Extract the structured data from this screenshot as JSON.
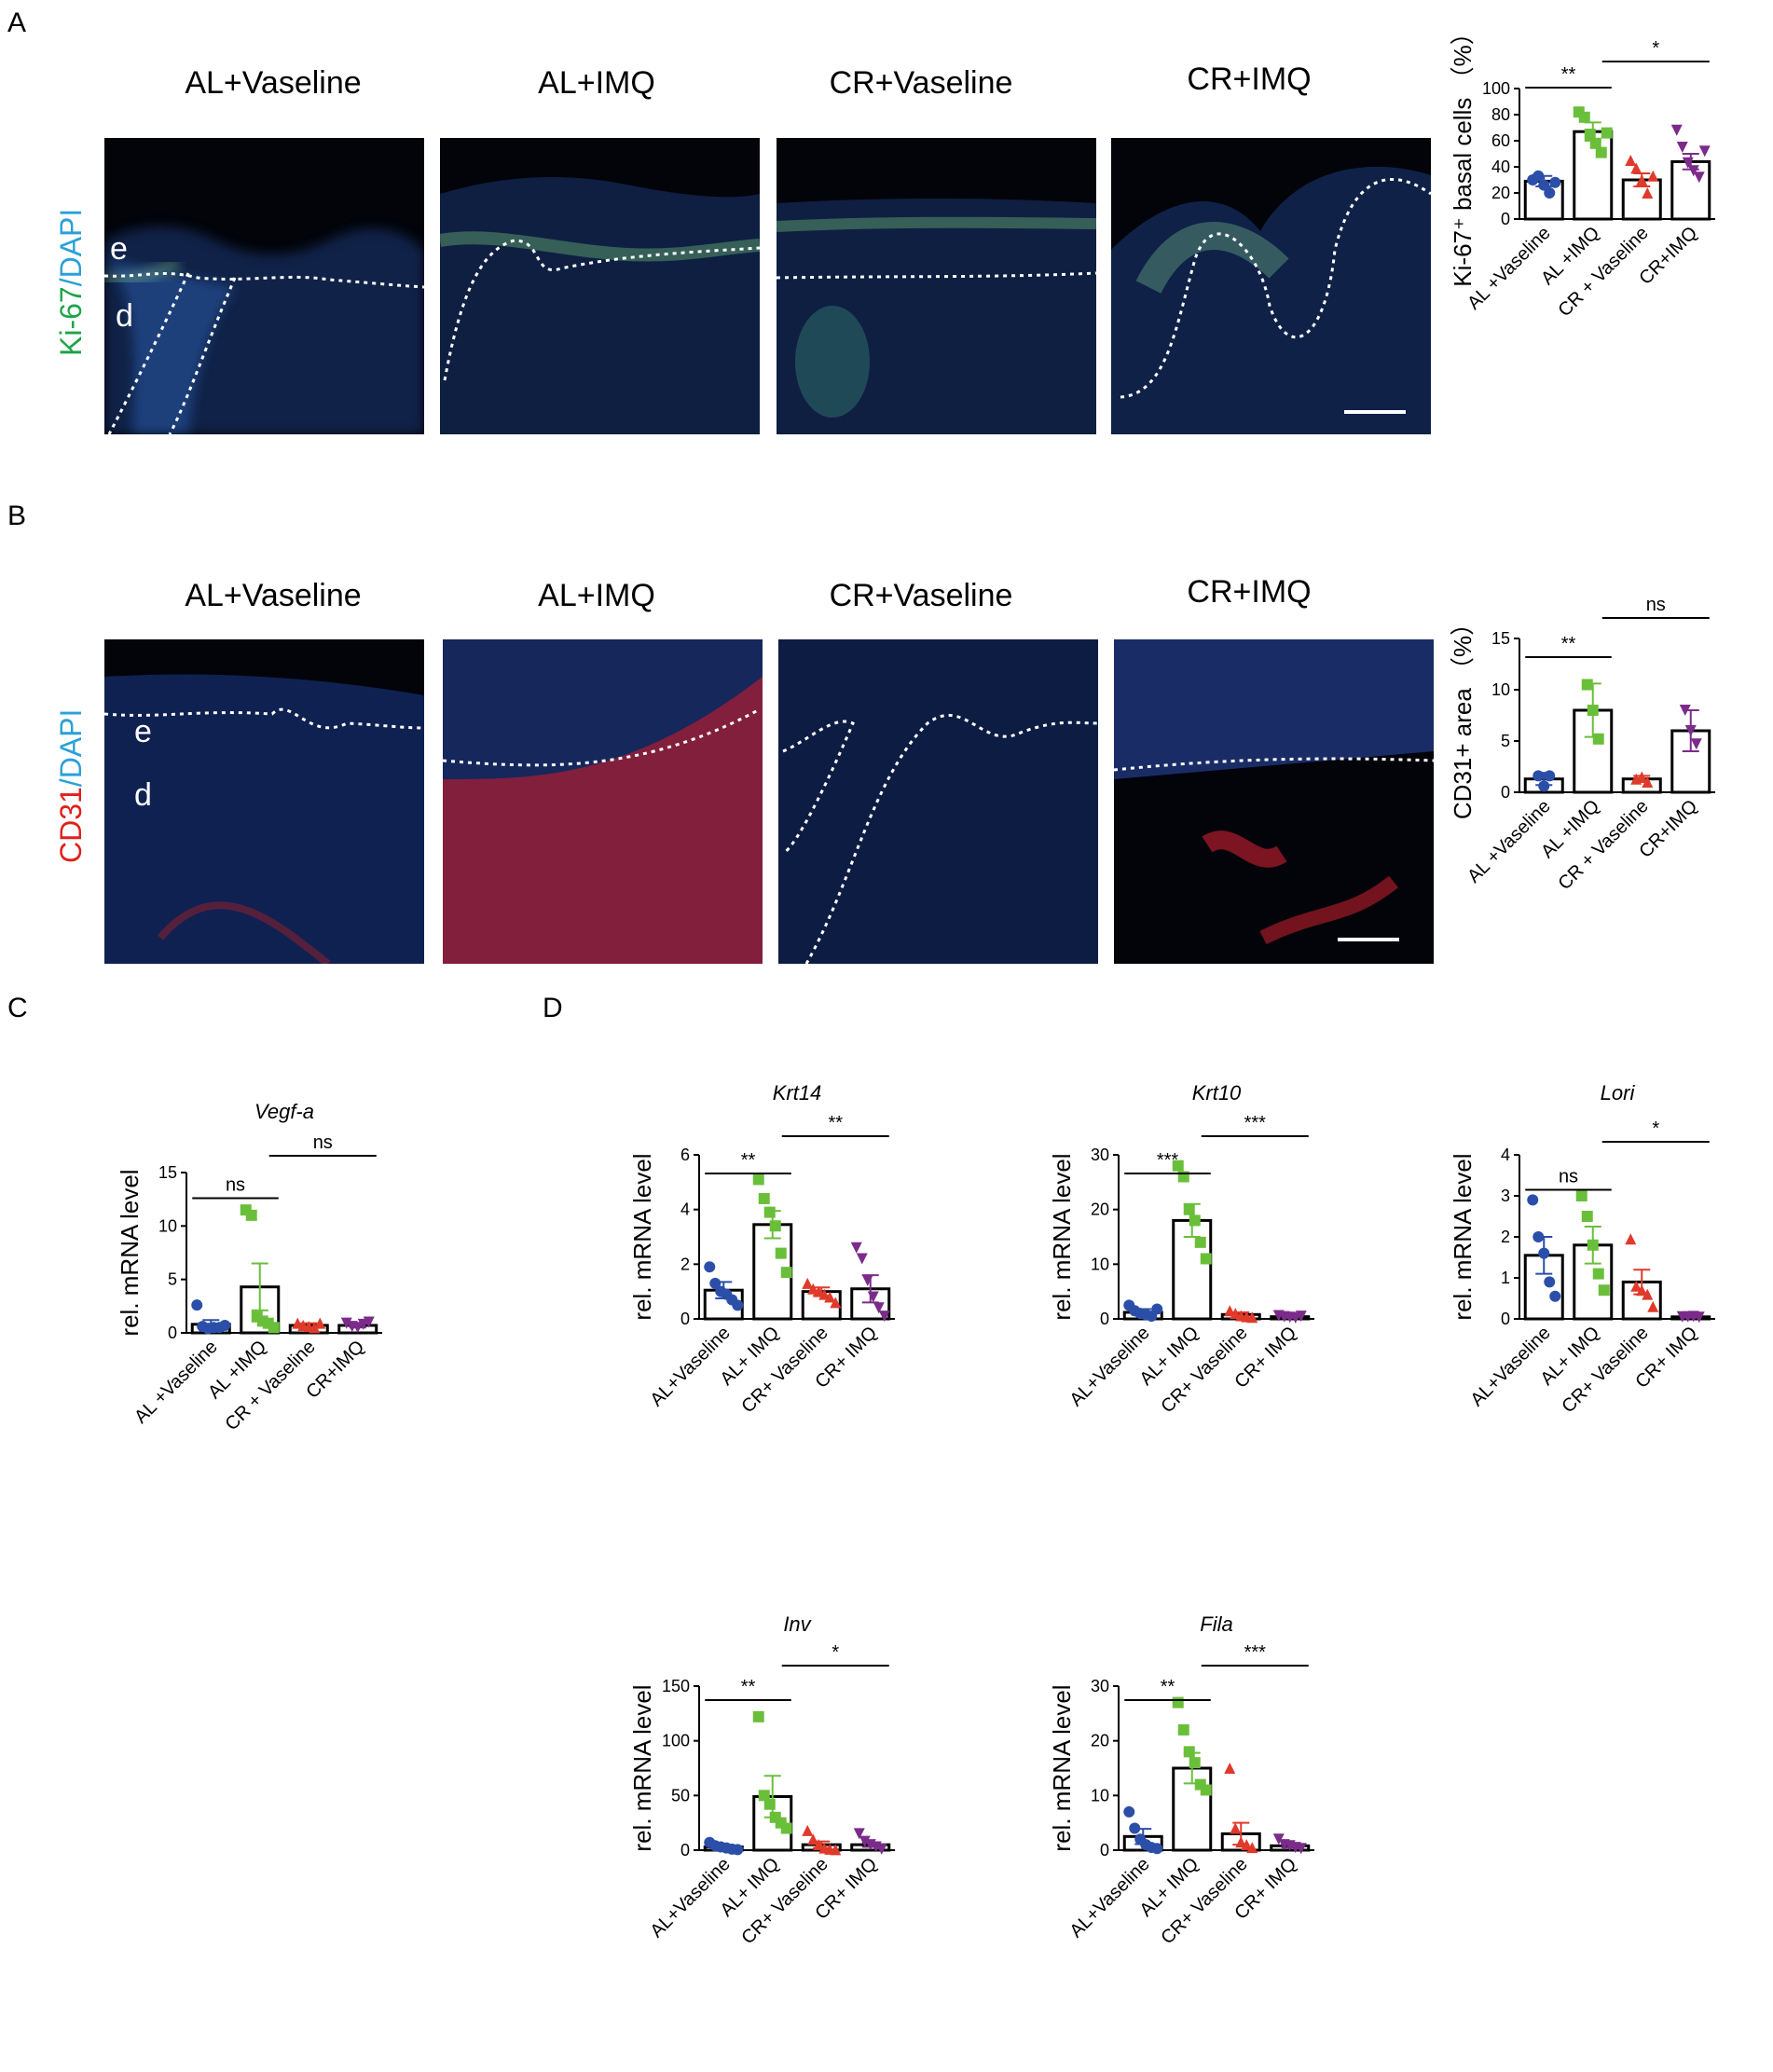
{
  "panels": {
    "A": "A",
    "B": "B",
    "C": "C",
    "D": "D"
  },
  "groups": [
    "AL+Vaseline",
    "AL+IMQ",
    "CR+Vaseline",
    "CR+IMQ"
  ],
  "image_labels": {
    "epidermis": "e",
    "dermis": "d"
  },
  "stains": {
    "A": {
      "marker": "Ki-67",
      "sep": "/",
      "dapi": "DAPI",
      "marker_color": "#1fa34a",
      "dapi_color": "#2aa0d8"
    },
    "B": {
      "marker": "CD31",
      "sep": "/",
      "dapi": "DAPI",
      "marker_color": "#e0201c",
      "dapi_color": "#2aa0d8"
    }
  },
  "colors": {
    "AL+Vaseline": "#2b4fa8",
    "AL+IMQ": "#6abf3a",
    "CR+Vaseline": "#e03a2a",
    "CR+IMQ": "#7b2b8a"
  },
  "chart_data": [
    {
      "id": "ki67",
      "type": "bar",
      "title": "",
      "ylabel": "Ki-67⁺ basal cells （%）",
      "categories": [
        "AL +Vaseline",
        "AL +IMQ",
        "CR + Vaseline",
        "CR+IMQ"
      ],
      "values": [
        29,
        67,
        30,
        44
      ],
      "errors": [
        4,
        7,
        5,
        6
      ],
      "ylim": [
        0,
        100
      ],
      "yticks": [
        0,
        20,
        40,
        60,
        80,
        100
      ],
      "points": [
        [
          30,
          33,
          26,
          20,
          28
        ],
        [
          82,
          78,
          65,
          58,
          51,
          66
        ],
        [
          45,
          39,
          30,
          20,
          33
        ],
        [
          68,
          55,
          43,
          37,
          32,
          52
        ]
      ],
      "markers": [
        "circle",
        "square",
        "triangle",
        "triangle-down"
      ],
      "sig": [
        {
          "from": 0,
          "to": 1,
          "label": "**"
        },
        {
          "from": 1,
          "to": 3,
          "label": "*"
        }
      ]
    },
    {
      "id": "cd31",
      "type": "bar",
      "title": "",
      "ylabel": "CD31+ area （%）",
      "categories": [
        "AL +Vaseline",
        "AL +IMQ",
        "CR + Vaseline",
        "CR+IMQ"
      ],
      "values": [
        1.3,
        8.0,
        1.3,
        6.0
      ],
      "errors": [
        0.6,
        2.6,
        0.3,
        2.0
      ],
      "ylim": [
        0,
        15
      ],
      "yticks": [
        0,
        5,
        10,
        15
      ],
      "points": [
        [
          1.6,
          0.6,
          1.6
        ],
        [
          10.5,
          8.0,
          5.2
        ],
        [
          1.3,
          1.5,
          1.0
        ],
        [
          8.0,
          6.0,
          4.7
        ]
      ],
      "markers": [
        "circle",
        "square",
        "triangle",
        "triangle-down"
      ],
      "sig": [
        {
          "from": 0,
          "to": 1,
          "label": "**"
        },
        {
          "from": 1,
          "to": 3,
          "label": "ns"
        }
      ]
    },
    {
      "id": "vegfa",
      "type": "bar",
      "title": "Vegf-a",
      "ylabel": "rel. mRNA level",
      "categories": [
        "AL +Vaseline",
        "AL +IMQ",
        "CR + Vaseline",
        "CR+IMQ"
      ],
      "values": [
        0.8,
        4.3,
        0.7,
        0.7
      ],
      "errors": [
        0.4,
        2.2,
        0.2,
        0.2
      ],
      "ylim": [
        0,
        15
      ],
      "yticks": [
        0,
        5,
        10,
        15
      ],
      "points": [
        [
          2.6,
          0.6,
          0.4,
          0.5,
          0.5,
          0.7
        ],
        [
          11.5,
          11.0,
          1.5,
          1.1,
          0.9,
          0.5
        ],
        [
          0.9,
          0.7,
          0.6,
          0.5,
          0.9
        ],
        [
          0.9,
          0.6,
          0.5,
          0.8,
          1.0
        ]
      ],
      "markers": [
        "circle",
        "square",
        "triangle",
        "triangle-down"
      ],
      "sig": [
        {
          "from": 0,
          "to": 1,
          "label": "ns"
        },
        {
          "from": 1,
          "to": 3,
          "label": "ns"
        }
      ]
    },
    {
      "id": "krt14",
      "type": "bar",
      "title": "Krt14",
      "ylabel": "rel. mRNA level",
      "categories": [
        "AL+Vaseline",
        "AL+ IMQ",
        "CR+ Vaseline",
        "CR+ IMQ"
      ],
      "values": [
        1.05,
        3.45,
        1.0,
        1.1
      ],
      "errors": [
        0.3,
        0.5,
        0.15,
        0.5
      ],
      "ylim": [
        0,
        6
      ],
      "yticks": [
        0,
        2,
        4,
        6
      ],
      "points": [
        [
          1.9,
          1.3,
          1.0,
          0.9,
          0.7,
          0.5
        ],
        [
          5.1,
          4.4,
          3.9,
          3.4,
          2.4,
          1.7
        ],
        [
          1.3,
          1.1,
          1.0,
          0.9,
          0.8,
          0.6
        ],
        [
          2.6,
          2.2,
          1.4,
          0.8,
          0.4,
          0.1
        ]
      ],
      "markers": [
        "circle",
        "square",
        "triangle",
        "triangle-down"
      ],
      "sig": [
        {
          "from": 0,
          "to": 1,
          "label": "**"
        },
        {
          "from": 1,
          "to": 3,
          "label": "**"
        }
      ]
    },
    {
      "id": "krt10",
      "type": "bar",
      "title": "Krt10",
      "ylabel": "rel. mRNA level",
      "categories": [
        "AL+Vaseline",
        "AL+ IMQ",
        "CR+ Vaseline",
        "CR+ IMQ"
      ],
      "values": [
        1.2,
        18,
        0.8,
        0.4
      ],
      "errors": [
        0.6,
        3,
        0.4,
        0.2
      ],
      "ylim": [
        0,
        30
      ],
      "yticks": [
        0,
        10,
        20,
        30
      ],
      "points": [
        [
          2.5,
          1.5,
          1.0,
          0.8,
          0.5,
          1.8
        ],
        [
          28,
          26,
          20,
          18,
          14,
          11
        ],
        [
          1.5,
          1.0,
          0.6,
          0.4,
          0.3
        ],
        [
          0.6,
          0.4,
          0.3,
          0.2,
          0.5
        ]
      ],
      "markers": [
        "circle",
        "square",
        "triangle",
        "triangle-down"
      ],
      "sig": [
        {
          "from": 0,
          "to": 1,
          "label": "***"
        },
        {
          "from": 1,
          "to": 3,
          "label": "***"
        }
      ]
    },
    {
      "id": "lori",
      "type": "bar",
      "title": "Lori",
      "ylabel": "rel. mRNA level",
      "categories": [
        "AL+Vaseline",
        "AL+ IMQ",
        "CR+ Vaseline",
        "CR+ IMQ"
      ],
      "values": [
        1.55,
        1.8,
        0.9,
        0.05
      ],
      "errors": [
        0.45,
        0.45,
        0.3,
        0.02
      ],
      "ylim": [
        0,
        4
      ],
      "yticks": [
        0,
        1,
        2,
        3,
        4
      ],
      "points": [
        [
          2.9,
          2.0,
          1.6,
          0.9,
          0.55
        ],
        [
          3.0,
          2.5,
          1.8,
          1.1,
          0.7
        ],
        [
          1.95,
          0.8,
          0.7,
          0.6,
          0.3
        ],
        [
          0.05,
          0.05,
          0.06,
          0.04
        ]
      ],
      "markers": [
        "circle",
        "square",
        "triangle",
        "triangle-down"
      ],
      "sig": [
        {
          "from": 0,
          "to": 1,
          "label": "ns"
        },
        {
          "from": 1,
          "to": 3,
          "label": "*"
        }
      ]
    },
    {
      "id": "inv",
      "type": "bar",
      "title": "Inv",
      "ylabel": "rel. mRNA level",
      "categories": [
        "AL+Vaseline",
        "AL+ IMQ",
        "CR+ Vaseline",
        "CR+ IMQ"
      ],
      "values": [
        3,
        49,
        5,
        5
      ],
      "errors": [
        1.5,
        19,
        3,
        2
      ],
      "ylim": [
        0,
        150
      ],
      "yticks": [
        0,
        50,
        100,
        150
      ],
      "points": [
        [
          7,
          4,
          3,
          2,
          1,
          0.5
        ],
        [
          122,
          50,
          42,
          30,
          25,
          20
        ],
        [
          18,
          10,
          5,
          2,
          1,
          0.5
        ],
        [
          15,
          8,
          5,
          3,
          1
        ]
      ],
      "markers": [
        "circle",
        "square",
        "triangle",
        "triangle-down"
      ],
      "sig": [
        {
          "from": 0,
          "to": 1,
          "label": "**"
        },
        {
          "from": 1,
          "to": 3,
          "label": "*"
        }
      ]
    },
    {
      "id": "fila",
      "type": "bar",
      "title": "Fila",
      "ylabel": "rel. mRNA level",
      "categories": [
        "AL+Vaseline",
        "AL+ IMQ",
        "CR+ Vaseline",
        "CR+ IMQ"
      ],
      "values": [
        2.5,
        15,
        3,
        0.8
      ],
      "errors": [
        1.4,
        2.8,
        2,
        0.3
      ],
      "ylim": [
        0,
        30
      ],
      "yticks": [
        0,
        10,
        20,
        30
      ],
      "points": [
        [
          7,
          4,
          2,
          1,
          0.5,
          0.3
        ],
        [
          27,
          22,
          18,
          16,
          12,
          11
        ],
        [
          15,
          4,
          1.5,
          1,
          0.5
        ],
        [
          2,
          1,
          0.8,
          0.5,
          0.3
        ]
      ],
      "markers": [
        "circle",
        "square",
        "triangle",
        "triangle-down"
      ],
      "sig": [
        {
          "from": 0,
          "to": 1,
          "label": "**"
        },
        {
          "from": 1,
          "to": 3,
          "label": "***"
        }
      ]
    }
  ]
}
